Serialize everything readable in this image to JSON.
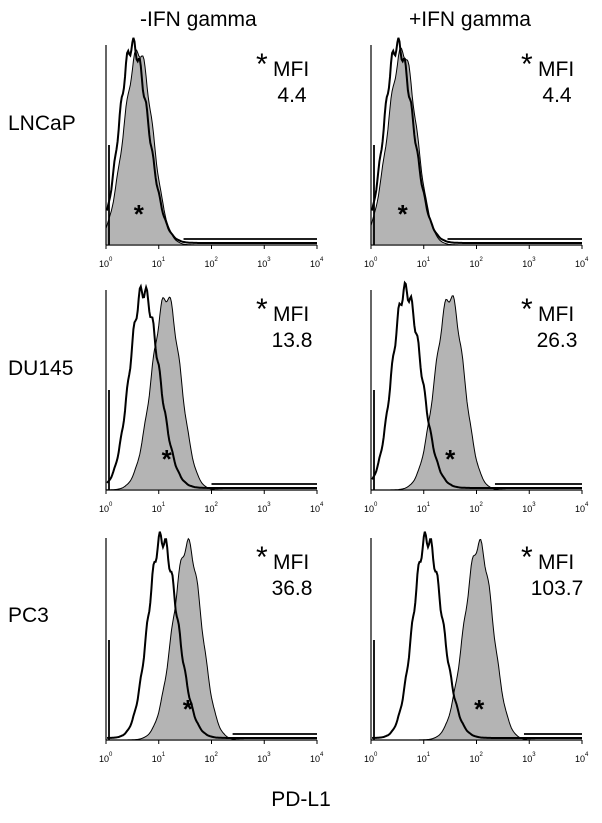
{
  "column_titles": [
    "-IFN gamma",
    "+IFN gamma"
  ],
  "row_labels": [
    "LNCaP",
    "DU145",
    "PC3"
  ],
  "x_axis_label": "PD-L1",
  "tick_base": "10",
  "tick_exponents": [
    "0",
    "1",
    "2",
    "3",
    "4"
  ],
  "mfi_label": "MFI",
  "star": "*",
  "chart_data": {
    "type": "histogram-grid",
    "x_scale": "log10",
    "xlim": [
      1,
      10000
    ],
    "xlabel": "PD-L1",
    "series": [
      "isotype control (open)",
      "PD-L1 stained (filled grey)"
    ],
    "panels": [
      {
        "row": "LNCaP",
        "column": "-IFN gamma",
        "mfi": "4.4",
        "control_peak_log": 0.5,
        "stained_peak_log": 0.62
      },
      {
        "row": "LNCaP",
        "column": "+IFN gamma",
        "mfi": "4.4",
        "control_peak_log": 0.5,
        "stained_peak_log": 0.6
      },
      {
        "row": "DU145",
        "column": "-IFN gamma",
        "mfi": "13.8",
        "control_peak_log": 0.7,
        "stained_peak_log": 1.15
      },
      {
        "row": "DU145",
        "column": "+IFN gamma",
        "mfi": "26.3",
        "control_peak_log": 0.65,
        "stained_peak_log": 1.5
      },
      {
        "row": "PC3",
        "column": "-IFN gamma",
        "mfi": "36.8",
        "control_peak_log": 1.05,
        "stained_peak_log": 1.55
      },
      {
        "row": "PC3",
        "column": "+IFN gamma",
        "mfi": "103.7",
        "control_peak_log": 1.05,
        "stained_peak_log": 2.05
      }
    ]
  }
}
